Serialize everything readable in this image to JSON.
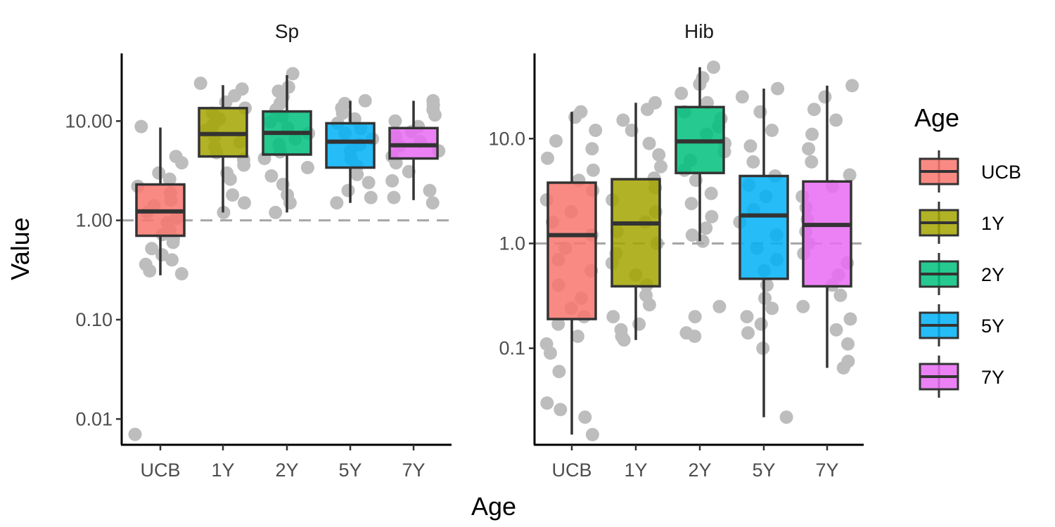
{
  "axis_titles": {
    "x": "Age",
    "y": "Value"
  },
  "legend": {
    "title": "Age",
    "entries": [
      {
        "label": "UCB",
        "color": "#F8766D"
      },
      {
        "label": "1Y",
        "color": "#A3A500"
      },
      {
        "label": "2Y",
        "color": "#00BF7D"
      },
      {
        "label": "5Y",
        "color": "#00B0F6"
      },
      {
        "label": "7Y",
        "color": "#E76BF3"
      }
    ]
  },
  "chart_data": [
    {
      "type": "boxplot",
      "panel": "Sp",
      "y_scale": "log10",
      "ylim": [
        0.0055,
        48
      ],
      "y_ticks": [
        0.01,
        0.1,
        1,
        10
      ],
      "y_tick_labels": [
        "0.01",
        "0.10",
        "1.00",
        "10.00"
      ],
      "reference_line": 1,
      "categories": [
        "UCB",
        "1Y",
        "2Y",
        "5Y",
        "7Y"
      ],
      "boxes": [
        {
          "category": "UCB",
          "whisker_low": 0.28,
          "q1": 0.7,
          "median": 1.23,
          "q3": 2.3,
          "whisker_high": 8.6
        },
        {
          "category": "1Y",
          "whisker_low": 1.2,
          "q1": 4.4,
          "median": 7.4,
          "q3": 13.5,
          "whisker_high": 23.0
        },
        {
          "category": "2Y",
          "whisker_low": 1.2,
          "q1": 4.6,
          "median": 7.6,
          "q3": 12.5,
          "whisker_high": 29.0
        },
        {
          "category": "5Y",
          "whisker_low": 1.5,
          "q1": 3.4,
          "median": 6.2,
          "q3": 9.5,
          "whisker_high": 16.0
        },
        {
          "category": "7Y",
          "whisker_low": 1.6,
          "q1": 4.2,
          "median": 5.7,
          "q3": 8.5,
          "whisker_high": 16.0
        }
      ],
      "points": [
        {
          "category": "UCB",
          "values": [
            0.007,
            0.29,
            0.31,
            0.36,
            0.4,
            0.45,
            0.52,
            0.6,
            0.65,
            0.72,
            0.8,
            0.95,
            1.05,
            1.2,
            1.4,
            1.6,
            1.9,
            2.2,
            2.6,
            3.0,
            3.8,
            4.4,
            8.8
          ]
        },
        {
          "category": "1Y",
          "values": [
            1.2,
            1.5,
            1.8,
            2.6,
            3.0,
            3.6,
            4.1,
            4.8,
            5.5,
            6.1,
            7.0,
            8.0,
            9.0,
            10.5,
            12.0,
            13.5,
            15.5,
            18.0,
            21.0,
            24.0
          ]
        },
        {
          "category": "2Y",
          "values": [
            1.2,
            1.5,
            1.8,
            2.3,
            2.8,
            3.4,
            4.2,
            4.9,
            5.8,
            6.6,
            7.5,
            8.5,
            9.8,
            11.0,
            13.0,
            15.0,
            17.5,
            20.0,
            22.0,
            30.0
          ]
        },
        {
          "category": "5Y",
          "values": [
            1.5,
            1.7,
            2.0,
            2.4,
            2.9,
            3.5,
            4.2,
            5.0,
            5.8,
            6.6,
            7.5,
            8.4,
            9.5,
            10.5,
            12.0,
            13.5,
            15.0,
            16.0
          ]
        },
        {
          "category": "7Y",
          "values": [
            1.5,
            1.7,
            2.0,
            2.5,
            3.1,
            3.8,
            4.4,
            5.0,
            5.6,
            6.2,
            7.0,
            7.8,
            8.8,
            10.0,
            11.5,
            13.0,
            14.5,
            16.0
          ]
        }
      ]
    },
    {
      "type": "boxplot",
      "panel": "Hib",
      "y_scale": "log10",
      "ylim": [
        0.012,
        65
      ],
      "y_ticks": [
        0.1,
        1,
        10
      ],
      "y_tick_labels": [
        "0.1",
        "1.0",
        "10.0"
      ],
      "reference_line": 1,
      "categories": [
        "UCB",
        "1Y",
        "2Y",
        "5Y",
        "7Y"
      ],
      "boxes": [
        {
          "category": "UCB",
          "whisker_low": 0.015,
          "q1": 0.19,
          "median": 1.2,
          "q3": 3.8,
          "whisker_high": 18.0
        },
        {
          "category": "1Y",
          "whisker_low": 0.12,
          "q1": 0.39,
          "median": 1.55,
          "q3": 4.1,
          "whisker_high": 22.0
        },
        {
          "category": "2Y",
          "whisker_low": 1.05,
          "q1": 4.7,
          "median": 9.4,
          "q3": 20.0,
          "whisker_high": 48.0
        },
        {
          "category": "5Y",
          "whisker_low": 0.022,
          "q1": 0.46,
          "median": 1.85,
          "q3": 4.4,
          "whisker_high": 30.0
        },
        {
          "category": "7Y",
          "whisker_low": 0.065,
          "q1": 0.39,
          "median": 1.5,
          "q3": 3.9,
          "whisker_high": 32.0
        }
      ],
      "points": [
        {
          "category": "UCB",
          "values": [
            0.015,
            0.022,
            0.026,
            0.03,
            0.06,
            0.09,
            0.11,
            0.13,
            0.17,
            0.2,
            0.24,
            0.3,
            0.4,
            0.55,
            0.7,
            0.9,
            1.2,
            1.6,
            2.0,
            2.6,
            3.2,
            4.0,
            5.0,
            6.5,
            8.0,
            9.5,
            12.0,
            16.0,
            18.0
          ]
        },
        {
          "category": "1Y",
          "values": [
            0.12,
            0.13,
            0.15,
            0.17,
            0.2,
            0.26,
            0.32,
            0.4,
            0.5,
            0.65,
            0.8,
            1.0,
            1.3,
            1.6,
            2.0,
            2.6,
            3.4,
            4.2,
            5.4,
            7.0,
            9.0,
            12.0,
            15.0,
            19.0,
            22.0
          ]
        },
        {
          "category": "2Y",
          "values": [
            0.13,
            0.14,
            0.2,
            0.25,
            1.05,
            1.2,
            1.4,
            1.8,
            2.4,
            3.0,
            4.0,
            5.0,
            6.2,
            7.5,
            9.0,
            11.0,
            13.0,
            15.5,
            18.0,
            22.0,
            27.0,
            33.0,
            38.0,
            48.0
          ]
        },
        {
          "category": "5Y",
          "values": [
            0.022,
            0.1,
            0.14,
            0.17,
            0.2,
            0.24,
            0.3,
            0.4,
            0.55,
            0.7,
            0.9,
            1.2,
            1.6,
            2.1,
            2.8,
            3.6,
            4.4,
            6.0,
            8.5,
            12.0,
            18.0,
            25.0,
            30.0
          ]
        },
        {
          "category": "7Y",
          "values": [
            0.065,
            0.075,
            0.11,
            0.15,
            0.19,
            0.25,
            0.32,
            0.4,
            0.5,
            0.65,
            0.8,
            1.0,
            1.3,
            1.7,
            2.2,
            2.8,
            3.5,
            4.5,
            6.0,
            8.0,
            11.0,
            15.0,
            19.0,
            25.0,
            32.0
          ]
        }
      ]
    }
  ]
}
